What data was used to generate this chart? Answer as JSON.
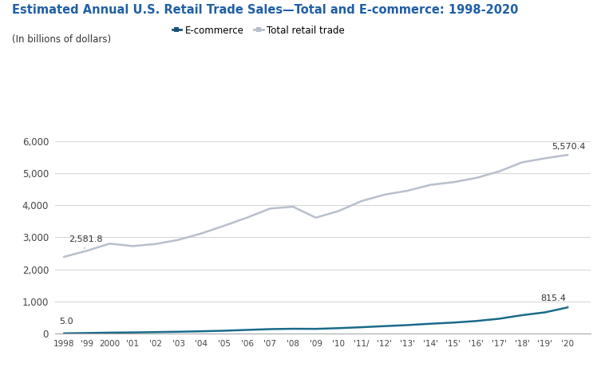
{
  "title": "Estimated Annual U.S. Retail Trade Sales—Total and E-commerce: 1998-2020",
  "subtitle": "(In billions of dollars)",
  "title_color": "#1f5fa6",
  "years": [
    1998,
    1999,
    2000,
    2001,
    2002,
    2003,
    2004,
    2005,
    2006,
    2007,
    2008,
    2009,
    2010,
    2011,
    2012,
    2013,
    2014,
    2015,
    2016,
    2017,
    2018,
    2019,
    2020
  ],
  "x_labels": [
    "1998",
    "'99",
    "2000",
    "'01",
    "'02",
    "'03",
    "'04",
    "'05",
    "'06",
    "'07",
    "'08",
    "'09",
    "'10",
    "'11/",
    "'12'",
    "'13'",
    "'14'",
    "'15'",
    "'16'",
    "'17'",
    "'18'",
    "'19'",
    "'20"
  ],
  "total_retail": [
    2390.0,
    2581.8,
    2803.0,
    2727.0,
    2791.0,
    2922.0,
    3121.0,
    3363.0,
    3617.0,
    3897.0,
    3954.0,
    3612.0,
    3823.0,
    4133.0,
    4331.0,
    4453.0,
    4636.0,
    4720.0,
    4852.0,
    5055.0,
    5338.0,
    5463.0,
    5570.4
  ],
  "ecommerce": [
    5.0,
    14.9,
    27.6,
    34.0,
    44.4,
    55.6,
    70.4,
    87.6,
    113.0,
    137.0,
    148.0,
    145.0,
    168.0,
    197.0,
    231.0,
    263.0,
    305.0,
    341.0,
    390.0,
    461.0,
    572.0,
    660.0,
    815.4
  ],
  "total_color": "#b8bfcc",
  "ecommerce_color": "#1a6b8a",
  "ylim": [
    0,
    6500
  ],
  "yticks": [
    0,
    1000,
    2000,
    3000,
    4000,
    5000,
    6000
  ],
  "background_color": "#ffffff",
  "grid_color": "#d8d8d8",
  "legend_labels": [
    "E-commerce",
    "Total retail trade"
  ],
  "legend_colors": [
    "#1a5276",
    "#b8bfcc"
  ]
}
